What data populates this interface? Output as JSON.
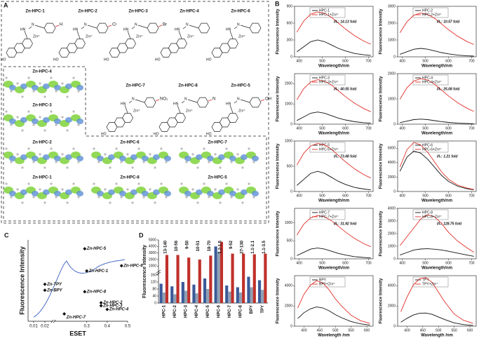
{
  "panel_labels": [
    "A",
    "B",
    "C",
    "D"
  ],
  "panel_a": {
    "structures": [
      {
        "label": "Zn-HPC-1",
        "substituent": "H"
      },
      {
        "label": "Zn-HPC-2",
        "substituent": "Cl"
      },
      {
        "label": "Zn-HPC-3",
        "substituent": "Br"
      },
      {
        "label": "Zn-HPC-4"
      },
      {
        "label": "Zn-HPC-6"
      },
      {
        "label": "Zn-HPC-7",
        "substituent": "NO₂"
      },
      {
        "label": "Zn-HPC-8",
        "substituent": "N"
      },
      {
        "label": "Zn-HPC-5",
        "substituent": "OH"
      }
    ],
    "atoms": {
      "hn": "HN",
      "n": "N",
      "zn": "Zn²⁺",
      "ho": "HO"
    },
    "orbitals": [
      "Zn-HPC-4",
      "Zn-HPC-3",
      "Zn-HPC-2",
      "Zn-HPC-6",
      "Zn-HPC-7",
      "Zn-HPC-1",
      "Zn-HPC-8",
      "Zn-HPC-5"
    ]
  },
  "chart_data": [
    {
      "type": "line",
      "ylabel": "Fluorescence Intensity",
      "xlabel": "Wavelength/nm",
      "annotation": "I/I₀: 14.13 fold",
      "x": [
        390,
        420,
        450,
        480,
        510,
        540,
        570,
        600,
        640,
        680,
        710
      ],
      "xlim": [
        380,
        720
      ],
      "xticks": [
        400,
        500,
        600,
        700
      ],
      "ylim": [
        0,
        900
      ],
      "yticks": [
        0,
        300,
        600,
        900
      ],
      "series": [
        {
          "name": "HPC-1",
          "color": "#111111",
          "values": [
            90,
            180,
            270,
            300,
            270,
            210,
            150,
            105,
            60,
            36,
            24
          ]
        },
        {
          "name": "HPC-1+Zn²⁺",
          "color": "#e0302a",
          "values": [
            440,
            640,
            760,
            800,
            776,
            704,
            600,
            496,
            376,
            280,
            224
          ]
        }
      ]
    },
    {
      "type": "line",
      "ylabel": "Fluorescence Intensity",
      "xlabel": "Wavelength/nm",
      "annotation": "I/I₀: 10.57 fold",
      "x": [
        390,
        420,
        450,
        480,
        510,
        540,
        570,
        600,
        640,
        680,
        710
      ],
      "xlim": [
        380,
        720
      ],
      "xticks": [
        400,
        500,
        600,
        700
      ],
      "ylim": [
        0,
        3000
      ],
      "yticks": [
        0,
        1000,
        2000,
        3000
      ],
      "series": [
        {
          "name": "HPC-2",
          "color": "#111111",
          "values": [
            150,
            300,
            450,
            500,
            450,
            350,
            250,
            175,
            100,
            60,
            40
          ]
        },
        {
          "name": "HPC-2+Zn²⁺",
          "color": "#e0302a",
          "values": [
            1430,
            2080,
            2470,
            2600,
            2522,
            2288,
            1950,
            1612,
            1222,
            910,
            728
          ]
        }
      ]
    },
    {
      "type": "line",
      "ylabel": "Fluorescence Intensity",
      "xlabel": "Wavelength/nm",
      "annotation": "I/I₀: 40.55 fold",
      "x": [
        390,
        420,
        450,
        480,
        510,
        540,
        570,
        600,
        640,
        680,
        710
      ],
      "xlim": [
        380,
        720
      ],
      "xticks": [
        400,
        500,
        600,
        700
      ],
      "ylim": [
        0,
        2500
      ],
      "yticks": [
        0,
        1000,
        2000
      ],
      "series": [
        {
          "name": "HPC-3",
          "color": "#111111",
          "values": [
            180,
            360,
            540,
            600,
            540,
            420,
            300,
            210,
            120,
            72,
            48
          ]
        },
        {
          "name": "HPC-3+Zn²⁺",
          "color": "#e0302a",
          "values": [
            1210,
            1760,
            2090,
            2200,
            2134,
            1936,
            1650,
            1364,
            1034,
            770,
            616
          ]
        }
      ]
    },
    {
      "type": "line",
      "ylabel": "Fluorescence Intensity",
      "xlabel": "Wavelength/nm",
      "annotation": "I/I₀: 25.08 fold",
      "x": [
        390,
        420,
        450,
        480,
        510,
        540,
        570,
        600,
        640,
        680,
        710
      ],
      "xlim": [
        380,
        720
      ],
      "xticks": [
        400,
        500,
        600,
        700
      ],
      "ylim": [
        0,
        2000
      ],
      "yticks": [
        0,
        1000,
        2000
      ],
      "series": [
        {
          "name": "HPC-4",
          "color": "#111111",
          "values": [
            60,
            120,
            180,
            200,
            180,
            140,
            100,
            70,
            40,
            24,
            16
          ]
        },
        {
          "name": "HPC-4+Zn²⁺",
          "color": "#e0302a",
          "values": [
            990,
            1440,
            1710,
            1800,
            1746,
            1584,
            1350,
            1116,
            846,
            630,
            504
          ]
        }
      ]
    },
    {
      "type": "line",
      "ylabel": "Fluorescence Intensity",
      "xlabel": "Wavelength/nm",
      "annotation": "I/I₀: 73.48 fold",
      "x": [
        390,
        420,
        450,
        480,
        510,
        540,
        570,
        600,
        640,
        680,
        710
      ],
      "xlim": [
        380,
        720
      ],
      "xticks": [
        400,
        500,
        600,
        700
      ],
      "ylim": [
        0,
        1000
      ],
      "yticks": [
        0,
        500,
        1000
      ],
      "series": [
        {
          "name": "HPC-5",
          "color": "#111111",
          "values": [
            120,
            240,
            360,
            400,
            360,
            280,
            200,
            140,
            80,
            48,
            32
          ]
        },
        {
          "name": "HPC-5+Zn²⁺",
          "color": "#e0302a",
          "values": [
            523,
            760,
            903,
            950,
            922,
            836,
            713,
            589,
            447,
            333,
            266
          ]
        }
      ]
    },
    {
      "type": "line",
      "ylabel": "Fluorescence Intensity",
      "xlabel": "Wavelength/nm",
      "annotation": "I/I₀: 1.21 fold",
      "x": [
        390,
        420,
        450,
        480,
        510,
        540,
        570,
        600,
        640,
        680,
        710
      ],
      "xlim": [
        380,
        720
      ],
      "xticks": [
        400,
        500,
        600,
        700
      ],
      "ylim": [
        0,
        7000
      ],
      "yticks": [
        0,
        2000,
        4000,
        6000
      ],
      "series": [
        {
          "name": "HPC-6",
          "color": "#111111",
          "values": [
            2800,
            4760,
            5600,
            5320,
            4480,
            3360,
            2240,
            1400,
            728,
            392,
            224
          ]
        },
        {
          "name": "HPC-6+Zn²⁺",
          "color": "#e0302a",
          "values": [
            3400,
            5780,
            6800,
            6460,
            5440,
            4080,
            2720,
            1700,
            884,
            476,
            272
          ]
        }
      ]
    },
    {
      "type": "line",
      "ylabel": "Fluorescence Intensity",
      "xlabel": "Wavelength/nm",
      "annotation": "I/I₀: 31.92 fold",
      "x": [
        390,
        420,
        450,
        480,
        510,
        540,
        570,
        600,
        640,
        680,
        710
      ],
      "xlim": [
        380,
        720
      ],
      "xticks": [
        400,
        500,
        600,
        700
      ],
      "ylim": [
        0,
        1400
      ],
      "yticks": [
        0,
        500,
        1000
      ],
      "series": [
        {
          "name": "HPC-7",
          "color": "#111111",
          "values": [
            90,
            180,
            270,
            300,
            270,
            210,
            150,
            105,
            60,
            36,
            24
          ]
        },
        {
          "name": "HPC-7+Zn²⁺",
          "color": "#e0302a",
          "values": [
            660,
            960,
            1140,
            1200,
            1164,
            1056,
            900,
            744,
            564,
            420,
            336
          ]
        }
      ]
    },
    {
      "type": "line",
      "ylabel": "Fluorescence Intensity",
      "xlabel": "Wavelength/nm",
      "annotation": "I/I₀: 128.75 fold",
      "x": [
        390,
        420,
        450,
        480,
        510,
        540,
        570,
        600,
        640,
        680,
        710
      ],
      "xlim": [
        380,
        720
      ],
      "xticks": [
        400,
        500,
        600,
        700
      ],
      "ylim": [
        0,
        4000
      ],
      "yticks": [
        0,
        1000,
        2000,
        3000,
        4000
      ],
      "series": [
        {
          "name": "HPC-8",
          "color": "#111111",
          "values": [
            300,
            500,
            700,
            780,
            800,
            760,
            700,
            600,
            450,
            300,
            200
          ]
        },
        {
          "name": "HPC-8+Zn²⁺",
          "color": "#e0302a",
          "values": [
            1050,
            1750,
            2450,
            3150,
            3500,
            3325,
            2800,
            2100,
            1400,
            875,
            525
          ]
        }
      ]
    },
    {
      "type": "line",
      "ylabel": "Fluorescence Intensity",
      "xlabel": "Wavelength /nm",
      "x": [
        380,
        400,
        420,
        440,
        460,
        480,
        500,
        520,
        550,
        580,
        610
      ],
      "xlim": [
        370,
        620
      ],
      "xticks": [
        400,
        450,
        500,
        550,
        600
      ],
      "ylim": [
        0,
        5000
      ],
      "yticks": [
        0,
        2000,
        4000
      ],
      "series": [
        {
          "name": "BPY",
          "color": "#111111",
          "values": [
            760,
            1330,
            1710,
            1900,
            1805,
            1520,
            1140,
            836,
            456,
            228,
            114
          ]
        },
        {
          "name": "BPY+Zn²⁺",
          "color": "#e0302a",
          "values": [
            1800,
            3150,
            4050,
            4500,
            4275,
            3600,
            2700,
            1980,
            1080,
            540,
            270
          ]
        }
      ]
    },
    {
      "type": "line",
      "ylabel": "Fluorescence Intensity",
      "xlabel": "Wavelength /nm",
      "x": [
        380,
        400,
        420,
        440,
        460,
        480,
        500,
        520,
        550,
        580,
        610
      ],
      "xlim": [
        370,
        620
      ],
      "xticks": [
        400,
        450,
        500,
        550,
        600
      ],
      "ylim": [
        0,
        5000
      ],
      "yticks": [
        0,
        2000,
        4000
      ],
      "series": [
        {
          "name": "TPY",
          "color": "#111111",
          "values": [
            390,
            780,
            1105,
            1275,
            1300,
            1170,
            910,
            650,
            325,
            156,
            78
          ]
        },
        {
          "name": "TPY+Zn²⁺",
          "color": "#e0302a",
          "values": [
            1440,
            2880,
            4080,
            4700,
            4800,
            4320,
            3360,
            2400,
            1200,
            576,
            288
          ]
        }
      ]
    },
    {
      "type": "scatter",
      "xlabel": "ESET",
      "ylabel": "Fluorescence Intensity",
      "labels": [
        "Zn-TPY",
        "Zn-BPY",
        "Zn-HPC-7",
        "Zn-HPC-5",
        "Zn-HPC-1",
        "Zn-HPC-6",
        "Zn-HPC-8",
        "Zn-HPC-2",
        "Zn-HPC-3",
        "Zn-HPC-4"
      ],
      "x": [
        0.02,
        0.02,
        0.19,
        0.29,
        0.3,
        0.47,
        0.29,
        0.37,
        0.37,
        0.4
      ],
      "values": [
        5000,
        4200,
        1000,
        9800,
        6800,
        7500,
        4000,
        2500,
        2100,
        1600
      ],
      "xlim": [
        0.005,
        0.5
      ],
      "x_break": [
        0.025,
        0.15
      ],
      "xticks": [
        0.01,
        0.02,
        0.3,
        0.4,
        0.5
      ],
      "ylim": [
        0,
        11000
      ],
      "color": "#111111"
    },
    {
      "type": "bar",
      "ylabel": "Fluorescence Intensity",
      "categories": [
        "HPC-1",
        "HPC-2",
        "HPC-3",
        "HPC-4",
        "HPC-5",
        "HPC-6",
        "HPC-7",
        "HPC-8",
        "BPY",
        "TPY"
      ],
      "annotations": [
        "13-140",
        "10-56",
        "9-50",
        "10-51",
        "18-70",
        "1.2-1.5",
        "9-52",
        "27-130",
        "1.1-2.1",
        "1.1-3.5"
      ],
      "series": [
        {
          "color": "#3b5a98",
          "values": [
            110,
            95,
            120,
            105,
            140,
            4000,
            100,
            90,
            150,
            130
          ]
        },
        {
          "color": "#8fa0b4",
          "values": [
            60,
            50,
            70,
            55,
            80,
            3200,
            65,
            60,
            90,
            75
          ]
        },
        {
          "color": "#c0302a",
          "values": [
            2700,
            2700,
            2300,
            2000,
            2600,
            4700,
            2900,
            2900,
            2800,
            2900
          ]
        }
      ],
      "ylim": [
        0,
        5000
      ],
      "y_break": [
        160,
        500
      ],
      "yticks": [
        0,
        40,
        80,
        120,
        160,
        1000,
        2000,
        3000,
        4000,
        5000
      ]
    }
  ]
}
